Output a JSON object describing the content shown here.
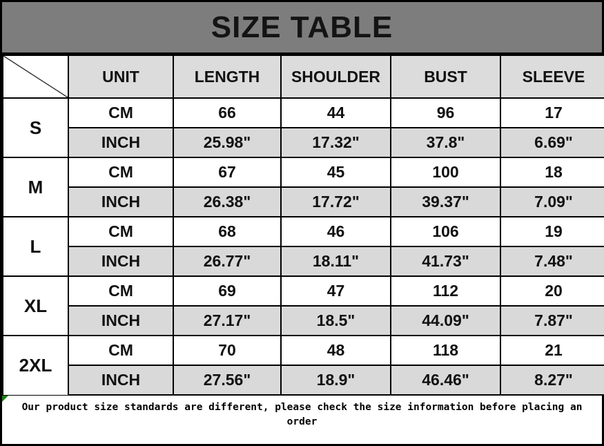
{
  "title": "SIZE TABLE",
  "chart_data": {
    "type": "table",
    "title": "SIZE TABLE",
    "columns": [
      "",
      "UNIT",
      "LENGTH",
      "SHOULDER",
      "BUST",
      "SLEEVE"
    ],
    "unit_row_labels": [
      "CM",
      "INCH"
    ],
    "size_groups": [
      {
        "size": "S",
        "cm": [
          "66",
          "44",
          "96",
          "17"
        ],
        "inch": [
          "25.98\"",
          "17.32\"",
          "37.8\"",
          "6.69\""
        ]
      },
      {
        "size": "M",
        "cm": [
          "67",
          "45",
          "100",
          "18"
        ],
        "inch": [
          "26.38\"",
          "17.72\"",
          "39.37\"",
          "7.09\""
        ]
      },
      {
        "size": "L",
        "cm": [
          "68",
          "46",
          "106",
          "19"
        ],
        "inch": [
          "26.77\"",
          "18.11\"",
          "41.73\"",
          "7.48\""
        ]
      },
      {
        "size": "XL",
        "cm": [
          "69",
          "47",
          "112",
          "20"
        ],
        "inch": [
          "27.17\"",
          "18.5\"",
          "44.09\"",
          "7.87\""
        ]
      },
      {
        "size": "2XL",
        "cm": [
          "70",
          "48",
          "118",
          "21"
        ],
        "inch": [
          "27.56\"",
          "18.9\"",
          "46.46\"",
          "8.27\""
        ]
      }
    ],
    "note": "Our product size standards are different, please check the size information before placing an order"
  },
  "colors": {
    "title_bar_gray": "#7d7d7d",
    "header_cell_gray": "#dcdcdc",
    "inch_row_gray": "#d9d9d9",
    "cm_row_white": "#ffffff",
    "border_black": "#000000",
    "corner_marker_green": "#1a7d1a"
  }
}
